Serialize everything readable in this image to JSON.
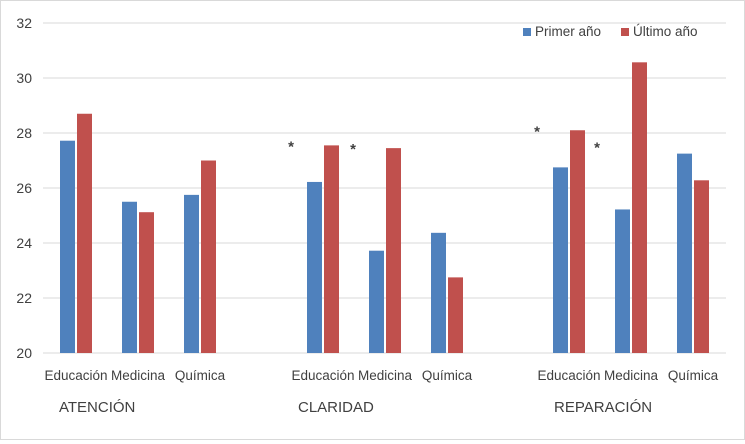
{
  "chart_data": {
    "type": "bar",
    "title": "",
    "xlabel": "",
    "ylabel": "",
    "ylim": [
      20,
      32
    ],
    "y_ticks": [
      20,
      22,
      24,
      26,
      28,
      30,
      32
    ],
    "grid": true,
    "legend_position": "top-right",
    "colors": {
      "primer": "#4f81bd",
      "ultimo": "#c0504d",
      "grid": "#d9d9d9",
      "text": "#404040"
    },
    "groups": [
      {
        "label": "ATENCIÓN",
        "categories": [
          "Educación",
          "Medicina",
          "Química"
        ],
        "series": [
          {
            "name": "Primer año",
            "values": [
              27.72,
              25.5,
              25.75
            ]
          },
          {
            "name": "Último año",
            "values": [
              28.7,
              25.12,
              27.0
            ]
          }
        ],
        "significance": []
      },
      {
        "label": "CLARIDAD",
        "categories": [
          "Educación",
          "Medicina",
          "Química"
        ],
        "series": [
          {
            "name": "Primer año",
            "values": [
              26.22,
              23.72,
              24.37
            ]
          },
          {
            "name": "Último año",
            "values": [
              27.55,
              27.45,
              22.75
            ]
          }
        ],
        "significance": [
          {
            "category": "Educación",
            "mark": "*"
          },
          {
            "category": "Medicina",
            "mark": "*"
          }
        ]
      },
      {
        "label": "REPARACIÓN",
        "categories": [
          "Educación",
          "Medicina",
          "Química"
        ],
        "series": [
          {
            "name": "Primer año",
            "values": [
              26.75,
              25.22,
              27.25
            ]
          },
          {
            "name": "Último año",
            "values": [
              28.1,
              30.57,
              26.28
            ]
          }
        ],
        "significance": [
          {
            "category": "Educación",
            "mark": "*"
          },
          {
            "category": "Educación",
            "mark": "*",
            "side": "right"
          }
        ]
      }
    ],
    "legend": [
      "Primer año",
      "Último año"
    ]
  }
}
